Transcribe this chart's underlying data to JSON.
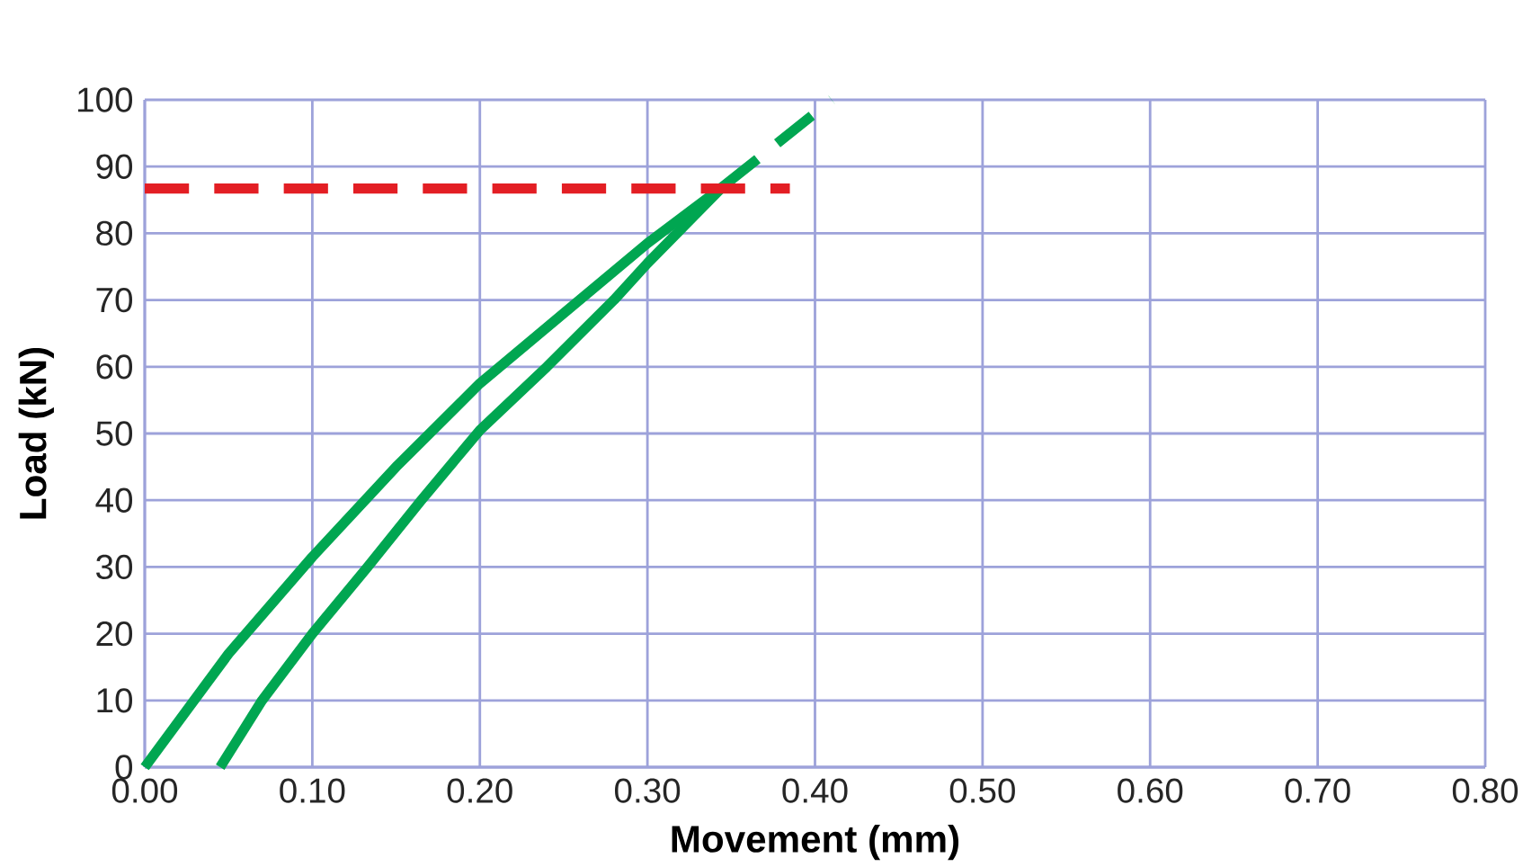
{
  "chart_data": {
    "type": "line",
    "xlabel": "Movement (mm)",
    "ylabel": "Load (kN)",
    "xlim": [
      0,
      0.8
    ],
    "ylim": [
      0,
      100
    ],
    "xticks": [
      {
        "value": 0,
        "label": "0.00"
      },
      {
        "value": 0.1,
        "label": "0.10"
      },
      {
        "value": 0.2,
        "label": "0.20"
      },
      {
        "value": 0.3,
        "label": "0.30"
      },
      {
        "value": 0.4,
        "label": "0.40"
      },
      {
        "value": 0.5,
        "label": "0.50"
      },
      {
        "value": 0.6,
        "label": "0.60"
      },
      {
        "value": 0.7,
        "label": "0.70"
      },
      {
        "value": 0.8,
        "label": "0.80"
      }
    ],
    "yticks": [
      0,
      10,
      20,
      30,
      40,
      50,
      60,
      70,
      80,
      90,
      100
    ],
    "grid": true,
    "series": [
      {
        "color": "#00a651",
        "line_style": "solid",
        "x": [
          0,
          0.05,
          0.1,
          0.15,
          0.2,
          0.25,
          0.3,
          0.345
        ],
        "values": [
          0,
          17,
          31.5,
          45,
          57.5,
          68,
          78.5,
          87
        ]
      },
      {
        "color": "#00a651",
        "line_style": "solid",
        "x": [
          0.045,
          0.07,
          0.1,
          0.133,
          0.165,
          0.2,
          0.24,
          0.28,
          0.3,
          0.345
        ],
        "values": [
          0,
          10,
          20,
          30,
          40,
          50.5,
          60,
          70,
          75.5,
          87
        ]
      },
      {
        "color": "#00a651",
        "line_style": "dashed",
        "x": [
          0.345,
          0.41
        ],
        "values": [
          87,
          100
        ]
      },
      {
        "color": "#e31e24",
        "line_style": "dashed",
        "x": [
          0,
          0.385
        ],
        "values": [
          86.7,
          86.7
        ]
      }
    ]
  }
}
